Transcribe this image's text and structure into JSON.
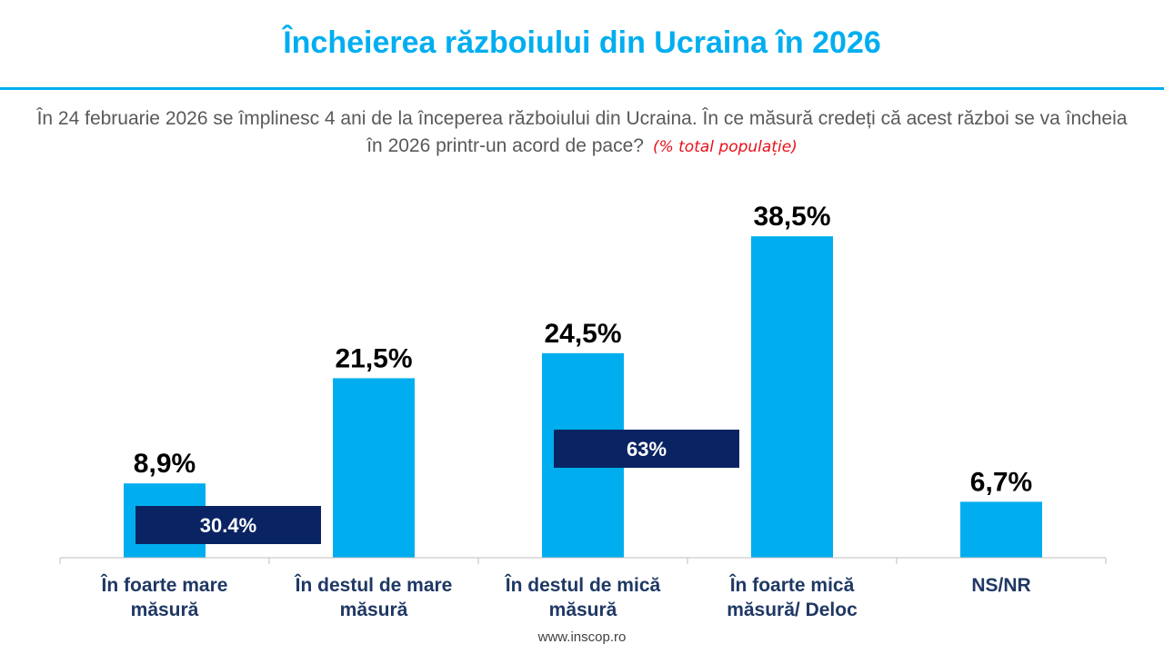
{
  "header": {
    "title": "Încheierea războiului din Ucraina în 2026",
    "question": "În 24 februarie 2026 se împlinesc 4 ani de la începerea războiului din Ucraina. În ce măsură credeți că acest război se va încheia în 2026 printr-un acord de pace?",
    "note": "(% total populație)"
  },
  "footer": {
    "website": "www.inscop.ro"
  },
  "colors": {
    "bar": "#00aeef",
    "group_box": "#0a2463",
    "title": "#00aeef",
    "category_label": "#1f3864",
    "note": "#e8101a"
  },
  "chart_data": {
    "type": "bar",
    "categories": [
      [
        "În foarte mare",
        "măsură"
      ],
      [
        "În destul de mare",
        "măsură"
      ],
      [
        "În destul de mică",
        "măsură"
      ],
      [
        "În foarte mică",
        "măsură/ Deloc"
      ],
      [
        "NS/NR"
      ]
    ],
    "values": [
      8.9,
      21.5,
      24.5,
      38.5,
      6.7
    ],
    "value_labels": [
      "8,9%",
      "21,5%",
      "24,5%",
      "38,5%",
      "6,7%"
    ],
    "ylim": [
      0,
      42
    ],
    "group_totals": [
      {
        "label": "30.4%",
        "value": 30.4,
        "spans": [
          0,
          1
        ]
      },
      {
        "label": "63%",
        "value": 63,
        "spans": [
          2,
          3
        ]
      }
    ]
  }
}
